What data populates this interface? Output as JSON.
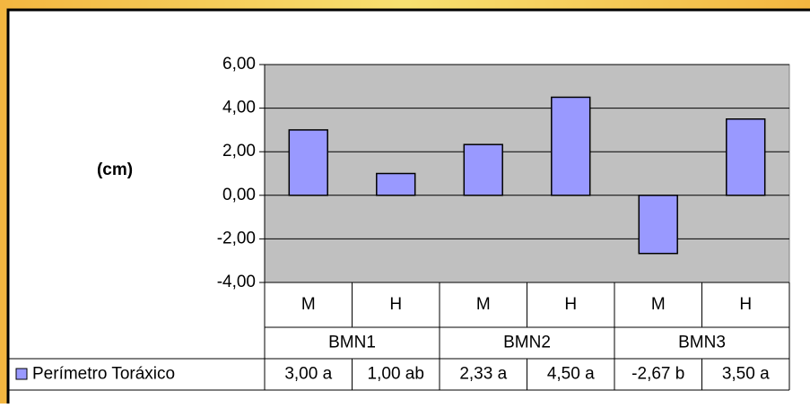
{
  "chart_data": {
    "type": "bar",
    "y_axis_label": "(cm)",
    "categories": [
      "M",
      "H",
      "M",
      "H",
      "M",
      "H"
    ],
    "groups": [
      "BMN1",
      "BMN2",
      "BMN3"
    ],
    "series": [
      {
        "name": "Perímetro Toráxico",
        "color": "#9999ff",
        "values": [
          3.0,
          1.0,
          2.33,
          4.5,
          -2.67,
          3.5
        ],
        "value_labels": [
          "3,00 a",
          "1,00 ab",
          "2,33 a",
          "4,50 a",
          "-2,67 b",
          "3,50 a"
        ]
      }
    ],
    "ylim": [
      -4,
      6
    ],
    "yticks": [
      {
        "value": -4,
        "label": "-4,00"
      },
      {
        "value": -2,
        "label": "-2,00"
      },
      {
        "value": 0,
        "label": "0,00"
      },
      {
        "value": 2,
        "label": "2,00"
      },
      {
        "value": 4,
        "label": "4,00"
      },
      {
        "value": 6,
        "label": "6,00"
      }
    ],
    "grid": true,
    "plot_background": "#c0c0c0"
  }
}
